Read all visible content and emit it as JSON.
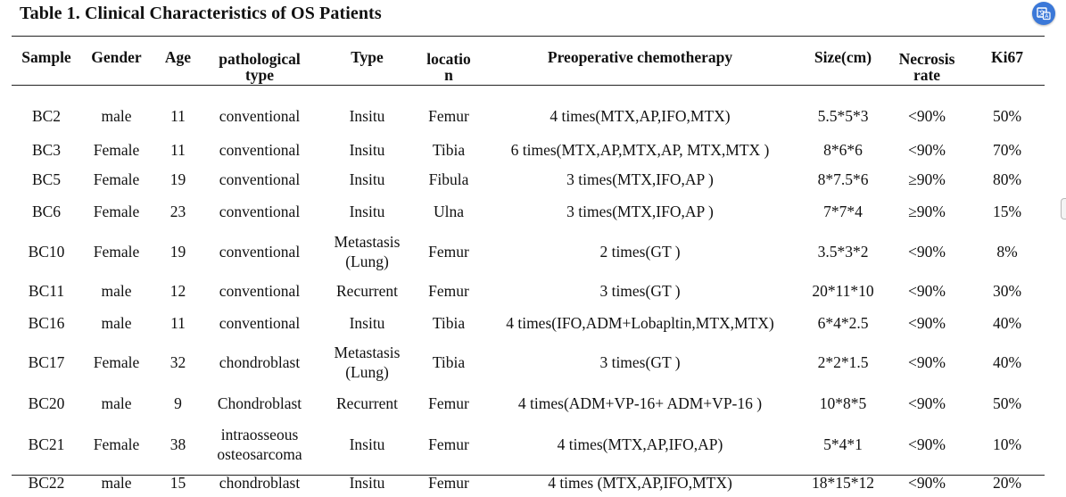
{
  "title": "Table 1. Clinical Characteristics of OS Patients",
  "columns": [
    [
      "Sample"
    ],
    [
      "Gender"
    ],
    [
      "Age"
    ],
    [
      "pathological",
      "type"
    ],
    [
      "Type"
    ],
    [
      "locatio",
      "n"
    ],
    [
      "Preoperative chemotherapy"
    ],
    [
      "Size(cm)"
    ],
    [
      "Necrosis",
      "rate"
    ],
    [
      "Ki67"
    ]
  ],
  "rows": [
    [
      [
        "BC2"
      ],
      [
        "male"
      ],
      [
        "11"
      ],
      [
        "conventional"
      ],
      [
        "Insitu"
      ],
      [
        "Femur"
      ],
      [
        "4 times(MTX,AP,IFO,MTX)"
      ],
      [
        "5.5*5*3"
      ],
      [
        "<90%"
      ],
      [
        "50%"
      ]
    ],
    [
      [
        "BC3"
      ],
      [
        "Female"
      ],
      [
        "11"
      ],
      [
        "conventional"
      ],
      [
        "Insitu"
      ],
      [
        "Tibia"
      ],
      [
        "6 times(MTX,AP,MTX,AP, MTX,MTX )"
      ],
      [
        "8*6*6"
      ],
      [
        "<90%"
      ],
      [
        "70%"
      ]
    ],
    [
      [
        "BC5"
      ],
      [
        "Female"
      ],
      [
        "19"
      ],
      [
        "conventional"
      ],
      [
        "Insitu"
      ],
      [
        "Fibula"
      ],
      [
        "3 times(MTX,IFO,AP )"
      ],
      [
        "8*7.5*6"
      ],
      [
        "≥90%"
      ],
      [
        "80%"
      ]
    ],
    [
      [
        "BC6"
      ],
      [
        "Female"
      ],
      [
        "23"
      ],
      [
        "conventional"
      ],
      [
        "Insitu"
      ],
      [
        "Ulna"
      ],
      [
        "3 times(MTX,IFO,AP )"
      ],
      [
        "7*7*4"
      ],
      [
        "≥90%"
      ],
      [
        "15%"
      ]
    ],
    [
      [
        "BC10"
      ],
      [
        "Female"
      ],
      [
        "19"
      ],
      [
        "conventional"
      ],
      [
        "Metastasis",
        "(Lung)"
      ],
      [
        "Femur"
      ],
      [
        "2 times(GT )"
      ],
      [
        "3.5*3*2"
      ],
      [
        "<90%"
      ],
      [
        "8%"
      ]
    ],
    [
      [
        "BC11"
      ],
      [
        "male"
      ],
      [
        "12"
      ],
      [
        "conventional"
      ],
      [
        "Recurrent"
      ],
      [
        "Femur"
      ],
      [
        "3 times(GT )"
      ],
      [
        "20*11*10"
      ],
      [
        "<90%"
      ],
      [
        "30%"
      ]
    ],
    [
      [
        "BC16"
      ],
      [
        "male"
      ],
      [
        "11"
      ],
      [
        "conventional"
      ],
      [
        "Insitu"
      ],
      [
        "Tibia"
      ],
      [
        "4 times(IFO,ADM+Lobapltin,MTX,MTX)"
      ],
      [
        "6*4*2.5"
      ],
      [
        "<90%"
      ],
      [
        "40%"
      ]
    ],
    [
      [
        "BC17"
      ],
      [
        "Female"
      ],
      [
        "32"
      ],
      [
        "chondroblast"
      ],
      [
        "Metastasis",
        "(Lung)"
      ],
      [
        "Tibia"
      ],
      [
        "3 times(GT )"
      ],
      [
        "2*2*1.5"
      ],
      [
        "<90%"
      ],
      [
        "40%"
      ]
    ],
    [
      [
        "BC20"
      ],
      [
        "male"
      ],
      [
        "9"
      ],
      [
        "Chondroblast"
      ],
      [
        "Recurrent"
      ],
      [
        "Femur"
      ],
      [
        "4 times(ADM+VP-16+ ADM+VP-16 )"
      ],
      [
        "10*8*5"
      ],
      [
        "<90%"
      ],
      [
        "50%"
      ]
    ],
    [
      [
        "BC21"
      ],
      [
        "Female"
      ],
      [
        "38"
      ],
      [
        "intraosseous",
        "osteosarcoma"
      ],
      [
        "Insitu"
      ],
      [
        "Femur"
      ],
      [
        "4 times(MTX,AP,IFO,AP)"
      ],
      [
        "5*4*1"
      ],
      [
        "<90%"
      ],
      [
        "10%"
      ]
    ],
    [
      [
        "BC22"
      ],
      [
        "male"
      ],
      [
        "15"
      ],
      [
        "chondroblast"
      ],
      [
        "Insitu"
      ],
      [
        "Femur"
      ],
      [
        "4 times (MTX,AP,IFO,MTX)"
      ],
      [
        "18*15*12"
      ],
      [
        "<90%"
      ],
      [
        "20%"
      ]
    ]
  ],
  "fab_icon": "translate-icon",
  "accent_color": "#3b78d8"
}
